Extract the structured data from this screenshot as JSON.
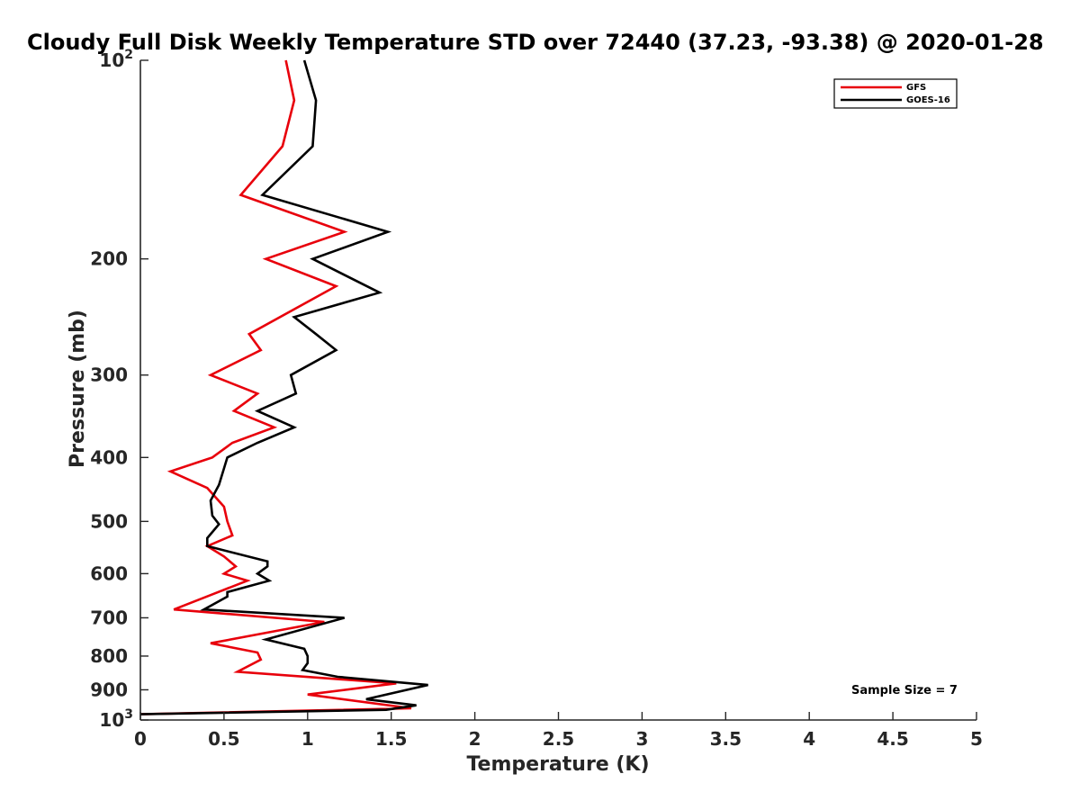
{
  "chart_data": {
    "type": "line",
    "title": "Cloudy Full Disk Weekly Temperature STD over 72440 (37.23, -93.38) @ 2020-01-28",
    "xlabel": "Temperature (K)",
    "ylabel": "Pressure (mb)",
    "xlim": [
      0,
      5
    ],
    "ylim": [
      1000,
      100
    ],
    "yscale": "log",
    "x_ticks": [
      "0",
      "0.5",
      "1",
      "1.5",
      "2",
      "2.5",
      "3",
      "3.5",
      "4",
      "4.5",
      "5"
    ],
    "y_ticks": [
      {
        "value": 100,
        "label": "10",
        "sup": "2"
      },
      {
        "value": 200,
        "label": "200"
      },
      {
        "value": 300,
        "label": "300"
      },
      {
        "value": 400,
        "label": "400"
      },
      {
        "value": 500,
        "label": "500"
      },
      {
        "value": 600,
        "label": "600"
      },
      {
        "value": 700,
        "label": "700"
      },
      {
        "value": 800,
        "label": "800"
      },
      {
        "value": 900,
        "label": "900"
      },
      {
        "value": 1000,
        "label": "10",
        "sup": "3"
      }
    ],
    "legend_position": "top-right",
    "annotation": "Sample Size = 7",
    "series": [
      {
        "name": "GFS",
        "color": "#e8000b",
        "points": [
          [
            0.87,
            100
          ],
          [
            0.92,
            115
          ],
          [
            0.85,
            135
          ],
          [
            0.6,
            160
          ],
          [
            1.22,
            182
          ],
          [
            0.75,
            200
          ],
          [
            1.17,
            220
          ],
          [
            0.65,
            260
          ],
          [
            0.72,
            275
          ],
          [
            0.42,
            300
          ],
          [
            0.7,
            320
          ],
          [
            0.56,
            340
          ],
          [
            0.8,
            360
          ],
          [
            0.55,
            380
          ],
          [
            0.43,
            400
          ],
          [
            0.18,
            420
          ],
          [
            0.4,
            445
          ],
          [
            0.5,
            475
          ],
          [
            0.52,
            500
          ],
          [
            0.55,
            525
          ],
          [
            0.4,
            545
          ],
          [
            0.5,
            565
          ],
          [
            0.57,
            585
          ],
          [
            0.5,
            600
          ],
          [
            0.64,
            615
          ],
          [
            0.43,
            645
          ],
          [
            0.2,
            680
          ],
          [
            1.1,
            710
          ],
          [
            0.42,
            765
          ],
          [
            0.7,
            790
          ],
          [
            0.72,
            810
          ],
          [
            0.58,
            845
          ],
          [
            1.53,
            880
          ],
          [
            1.0,
            915
          ],
          [
            1.62,
            960
          ],
          [
            0.0,
            980
          ]
        ]
      },
      {
        "name": "GOES-16",
        "color": "#000000",
        "points": [
          [
            0.98,
            100
          ],
          [
            1.05,
            115
          ],
          [
            1.03,
            135
          ],
          [
            0.73,
            160
          ],
          [
            1.48,
            182
          ],
          [
            1.03,
            200
          ],
          [
            1.43,
            225
          ],
          [
            0.92,
            245
          ],
          [
            1.05,
            260
          ],
          [
            1.17,
            275
          ],
          [
            0.9,
            300
          ],
          [
            0.93,
            320
          ],
          [
            0.7,
            340
          ],
          [
            0.92,
            360
          ],
          [
            0.7,
            380
          ],
          [
            0.52,
            400
          ],
          [
            0.47,
            440
          ],
          [
            0.42,
            465
          ],
          [
            0.43,
            490
          ],
          [
            0.47,
            505
          ],
          [
            0.4,
            530
          ],
          [
            0.4,
            545
          ],
          [
            0.76,
            575
          ],
          [
            0.76,
            585
          ],
          [
            0.7,
            600
          ],
          [
            0.77,
            615
          ],
          [
            0.52,
            640
          ],
          [
            0.52,
            650
          ],
          [
            0.38,
            680
          ],
          [
            1.22,
            700
          ],
          [
            0.75,
            755
          ],
          [
            0.98,
            780
          ],
          [
            1.0,
            800
          ],
          [
            1.0,
            820
          ],
          [
            0.97,
            840
          ],
          [
            1.18,
            860
          ],
          [
            1.72,
            885
          ],
          [
            1.35,
            930
          ],
          [
            1.65,
            950
          ],
          [
            1.47,
            965
          ],
          [
            0.0,
            980
          ]
        ]
      }
    ]
  }
}
